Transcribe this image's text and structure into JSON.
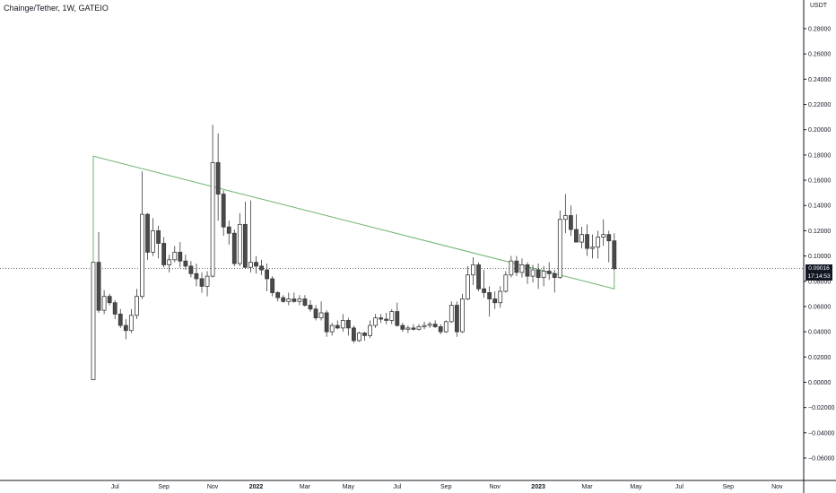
{
  "title": "Chainge/Tether, 1W, GATEIO",
  "currency": "USDT",
  "current_price": {
    "price": "0.09016",
    "countdown": "17:14:53"
  },
  "colors": {
    "up_fill": "#ffffff",
    "down_fill": "#4a4a4a",
    "candle_stroke": "#3a3a3a",
    "trendline": "#6db36d",
    "price_line": "#131722",
    "axis": "#131722"
  },
  "chart_data": {
    "type": "candlestick",
    "title": "Chainge/Tether, 1W, GATEIO",
    "y_axis": {
      "position": "right",
      "unit": "USDT",
      "range": [
        -0.075,
        0.29
      ],
      "ticks": [
        "0.28000",
        "0.26000",
        "0.24000",
        "0.22000",
        "0.20000",
        "0.18000",
        "0.16000",
        "0.14000",
        "0.12000",
        "0.10000",
        "0.08000",
        "0.06000",
        "0.04000",
        "0.02000",
        "0.00000",
        "−0.02000",
        "−0.04000",
        "−0.06000"
      ],
      "tick_values": [
        0.28,
        0.26,
        0.24,
        0.22,
        0.2,
        0.18,
        0.16,
        0.14,
        0.12,
        0.1,
        0.08,
        0.06,
        0.04,
        0.02,
        0.0,
        -0.02,
        -0.04,
        -0.06
      ]
    },
    "x_axis": {
      "labels": [
        "Jul",
        "Sep",
        "Nov",
        "2022",
        "Mar",
        "May",
        "Jul",
        "Sep",
        "Nov",
        "2023",
        "Mar",
        "May",
        "Jul",
        "Sep",
        "Nov"
      ],
      "label_week_index": [
        4,
        13,
        22,
        30,
        39,
        47,
        56,
        65,
        74,
        82,
        91,
        100,
        108,
        117,
        126
      ]
    },
    "candles": [
      [
        0.002,
        0.095,
        0.002,
        0.095
      ],
      [
        0.095,
        0.119,
        0.055,
        0.057
      ],
      [
        0.057,
        0.073,
        0.054,
        0.068
      ],
      [
        0.068,
        0.07,
        0.061,
        0.063
      ],
      [
        0.063,
        0.065,
        0.05,
        0.054
      ],
      [
        0.054,
        0.058,
        0.043,
        0.045
      ],
      [
        0.045,
        0.05,
        0.034,
        0.041
      ],
      [
        0.041,
        0.058,
        0.039,
        0.053
      ],
      [
        0.053,
        0.074,
        0.05,
        0.068
      ],
      [
        0.068,
        0.167,
        0.066,
        0.133
      ],
      [
        0.133,
        0.134,
        0.097,
        0.103
      ],
      [
        0.103,
        0.13,
        0.1,
        0.12
      ],
      [
        0.12,
        0.124,
        0.098,
        0.11
      ],
      [
        0.11,
        0.115,
        0.091,
        0.093
      ],
      [
        0.093,
        0.101,
        0.087,
        0.097
      ],
      [
        0.097,
        0.108,
        0.095,
        0.103
      ],
      [
        0.103,
        0.111,
        0.091,
        0.096
      ],
      [
        0.096,
        0.101,
        0.089,
        0.092
      ],
      [
        0.092,
        0.096,
        0.083,
        0.086
      ],
      [
        0.086,
        0.094,
        0.076,
        0.082
      ],
      [
        0.082,
        0.087,
        0.071,
        0.076
      ],
      [
        0.076,
        0.088,
        0.068,
        0.084
      ],
      [
        0.084,
        0.204,
        0.083,
        0.174
      ],
      [
        0.174,
        0.197,
        0.128,
        0.149
      ],
      [
        0.149,
        0.152,
        0.116,
        0.123
      ],
      [
        0.123,
        0.128,
        0.109,
        0.118
      ],
      [
        0.118,
        0.121,
        0.092,
        0.094
      ],
      [
        0.094,
        0.134,
        0.092,
        0.125
      ],
      [
        0.125,
        0.143,
        0.09,
        0.091
      ],
      [
        0.091,
        0.144,
        0.087,
        0.095
      ],
      [
        0.095,
        0.1,
        0.086,
        0.092
      ],
      [
        0.092,
        0.097,
        0.085,
        0.089
      ],
      [
        0.089,
        0.094,
        0.072,
        0.082
      ],
      [
        0.082,
        0.084,
        0.068,
        0.071
      ],
      [
        0.071,
        0.072,
        0.064,
        0.067
      ],
      [
        0.067,
        0.069,
        0.063,
        0.064
      ],
      [
        0.064,
        0.071,
        0.061,
        0.066
      ],
      [
        0.066,
        0.071,
        0.063,
        0.064
      ],
      [
        0.064,
        0.069,
        0.061,
        0.066
      ],
      [
        0.066,
        0.069,
        0.06,
        0.061
      ],
      [
        0.061,
        0.065,
        0.056,
        0.058
      ],
      [
        0.058,
        0.061,
        0.049,
        0.051
      ],
      [
        0.051,
        0.064,
        0.049,
        0.055
      ],
      [
        0.055,
        0.057,
        0.036,
        0.04
      ],
      [
        0.04,
        0.047,
        0.037,
        0.045
      ],
      [
        0.045,
        0.049,
        0.042,
        0.043
      ],
      [
        0.043,
        0.054,
        0.04,
        0.049
      ],
      [
        0.049,
        0.051,
        0.037,
        0.043
      ],
      [
        0.043,
        0.045,
        0.031,
        0.033
      ],
      [
        0.033,
        0.04,
        0.032,
        0.039
      ],
      [
        0.039,
        0.04,
        0.033,
        0.037
      ],
      [
        0.037,
        0.049,
        0.035,
        0.045
      ],
      [
        0.045,
        0.054,
        0.043,
        0.051
      ],
      [
        0.051,
        0.054,
        0.047,
        0.05
      ],
      [
        0.05,
        0.055,
        0.046,
        0.049
      ],
      [
        0.049,
        0.058,
        0.046,
        0.056
      ],
      [
        0.056,
        0.063,
        0.044,
        0.045
      ],
      [
        0.045,
        0.047,
        0.04,
        0.042
      ],
      [
        0.042,
        0.045,
        0.039,
        0.043
      ],
      [
        0.043,
        0.046,
        0.041,
        0.042
      ],
      [
        0.042,
        0.046,
        0.041,
        0.044
      ],
      [
        0.044,
        0.048,
        0.042,
        0.045
      ],
      [
        0.045,
        0.048,
        0.043,
        0.046
      ],
      [
        0.046,
        0.049,
        0.043,
        0.044
      ],
      [
        0.044,
        0.046,
        0.038,
        0.04
      ],
      [
        0.04,
        0.049,
        0.039,
        0.048
      ],
      [
        0.048,
        0.064,
        0.047,
        0.061
      ],
      [
        0.061,
        0.064,
        0.036,
        0.04
      ],
      [
        0.04,
        0.07,
        0.039,
        0.066
      ],
      [
        0.066,
        0.092,
        0.065,
        0.085
      ],
      [
        0.085,
        0.099,
        0.077,
        0.093
      ],
      [
        0.093,
        0.095,
        0.072,
        0.074
      ],
      [
        0.074,
        0.089,
        0.067,
        0.071
      ],
      [
        0.071,
        0.076,
        0.052,
        0.066
      ],
      [
        0.066,
        0.072,
        0.058,
        0.063
      ],
      [
        0.063,
        0.076,
        0.059,
        0.072
      ],
      [
        0.072,
        0.088,
        0.071,
        0.085
      ],
      [
        0.085,
        0.1,
        0.083,
        0.096
      ],
      [
        0.096,
        0.1,
        0.084,
        0.087
      ],
      [
        0.087,
        0.098,
        0.083,
        0.093
      ],
      [
        0.093,
        0.095,
        0.078,
        0.084
      ],
      [
        0.084,
        0.093,
        0.079,
        0.089
      ],
      [
        0.089,
        0.094,
        0.074,
        0.083
      ],
      [
        0.083,
        0.092,
        0.076,
        0.088
      ],
      [
        0.088,
        0.095,
        0.081,
        0.086
      ],
      [
        0.086,
        0.089,
        0.071,
        0.083
      ],
      [
        0.083,
        0.136,
        0.082,
        0.129
      ],
      [
        0.129,
        0.149,
        0.118,
        0.132
      ],
      [
        0.132,
        0.14,
        0.116,
        0.121
      ],
      [
        0.121,
        0.133,
        0.111,
        0.111
      ],
      [
        0.111,
        0.123,
        0.106,
        0.117
      ],
      [
        0.117,
        0.125,
        0.1,
        0.106
      ],
      [
        0.106,
        0.117,
        0.098,
        0.107
      ],
      [
        0.107,
        0.12,
        0.098,
        0.115
      ],
      [
        0.115,
        0.129,
        0.108,
        0.117
      ],
      [
        0.117,
        0.12,
        0.095,
        0.112
      ],
      [
        0.112,
        0.118,
        0.089,
        0.09
      ]
    ]
  }
}
